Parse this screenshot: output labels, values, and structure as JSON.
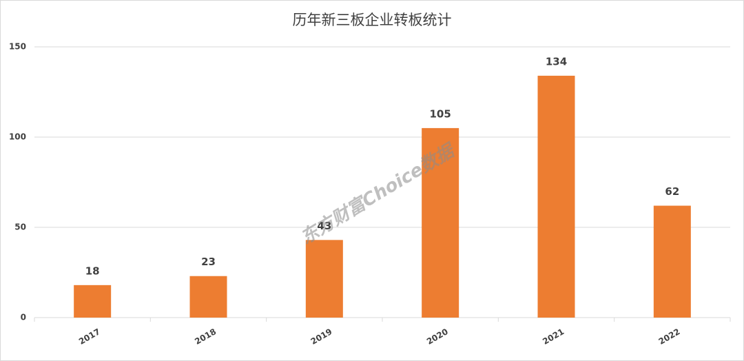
{
  "chart_data": {
    "type": "bar",
    "title": "历年新三板企业转板统计",
    "categories": [
      "2017",
      "2018",
      "2019",
      "2020",
      "2021",
      "2022"
    ],
    "values": [
      18,
      23,
      43,
      105,
      134,
      62
    ],
    "color": "#ed7d31",
    "ylim": [
      0,
      150
    ],
    "yticks": [
      0,
      50,
      100,
      150
    ],
    "grid": true,
    "watermark": "东方财富Choice数据"
  }
}
